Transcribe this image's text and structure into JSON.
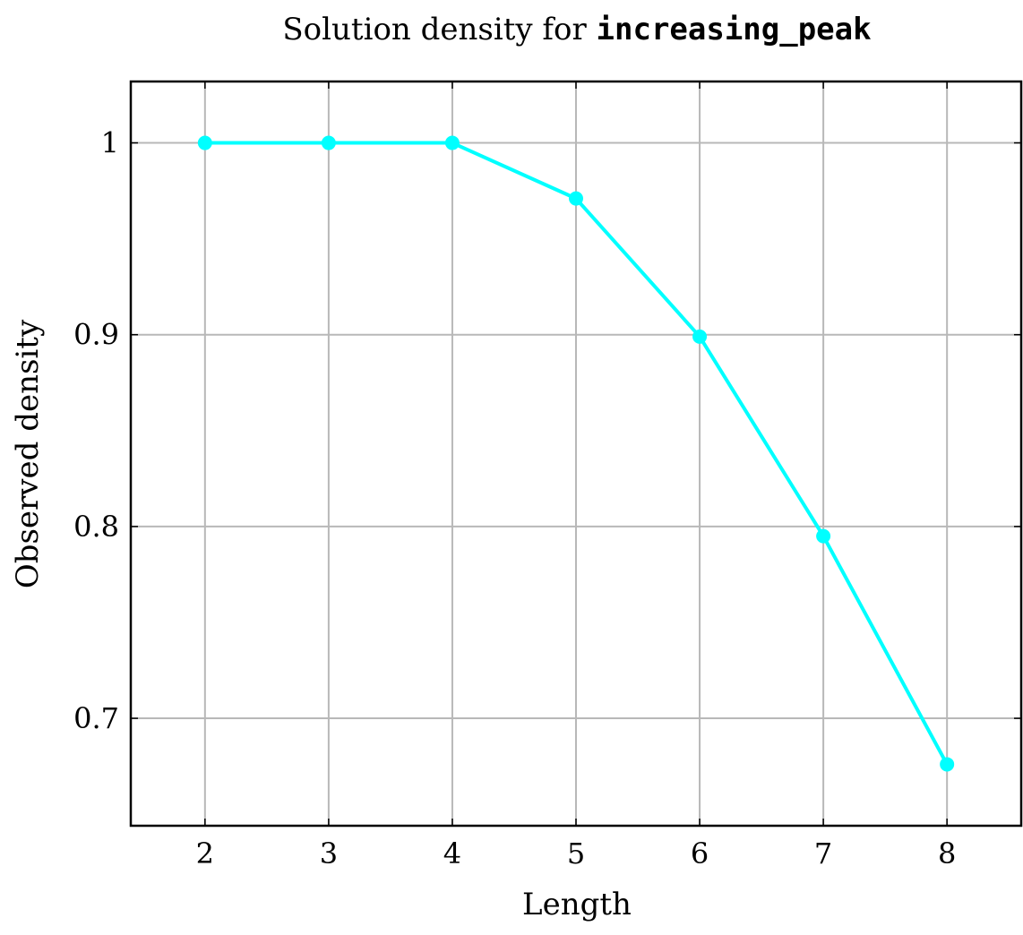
{
  "chart_data": {
    "type": "line",
    "title_prefix": "Solution density for ",
    "title_code": "increasing_peak",
    "xlabel": "Length",
    "ylabel": "Observed density",
    "x": [
      2,
      3,
      4,
      5,
      6,
      7,
      8
    ],
    "series": [
      {
        "values": [
          1.0,
          1.0,
          1.0,
          0.971,
          0.899,
          0.795,
          0.676
        ],
        "color": "#00ffff"
      }
    ],
    "xlim": [
      1.4,
      8.6
    ],
    "ylim": [
      0.644,
      1.032
    ],
    "xticks": [
      "2",
      "3",
      "4",
      "5",
      "6",
      "7",
      "8"
    ],
    "yticks": [
      {
        "value": 0.7,
        "label": "0.7"
      },
      {
        "value": 0.8,
        "label": "0.8"
      },
      {
        "value": 0.9,
        "label": "0.9"
      },
      {
        "value": 1.0,
        "label": "1"
      }
    ],
    "grid": true,
    "grid_color": "#b8b8b8",
    "axis_color": "#000000"
  }
}
